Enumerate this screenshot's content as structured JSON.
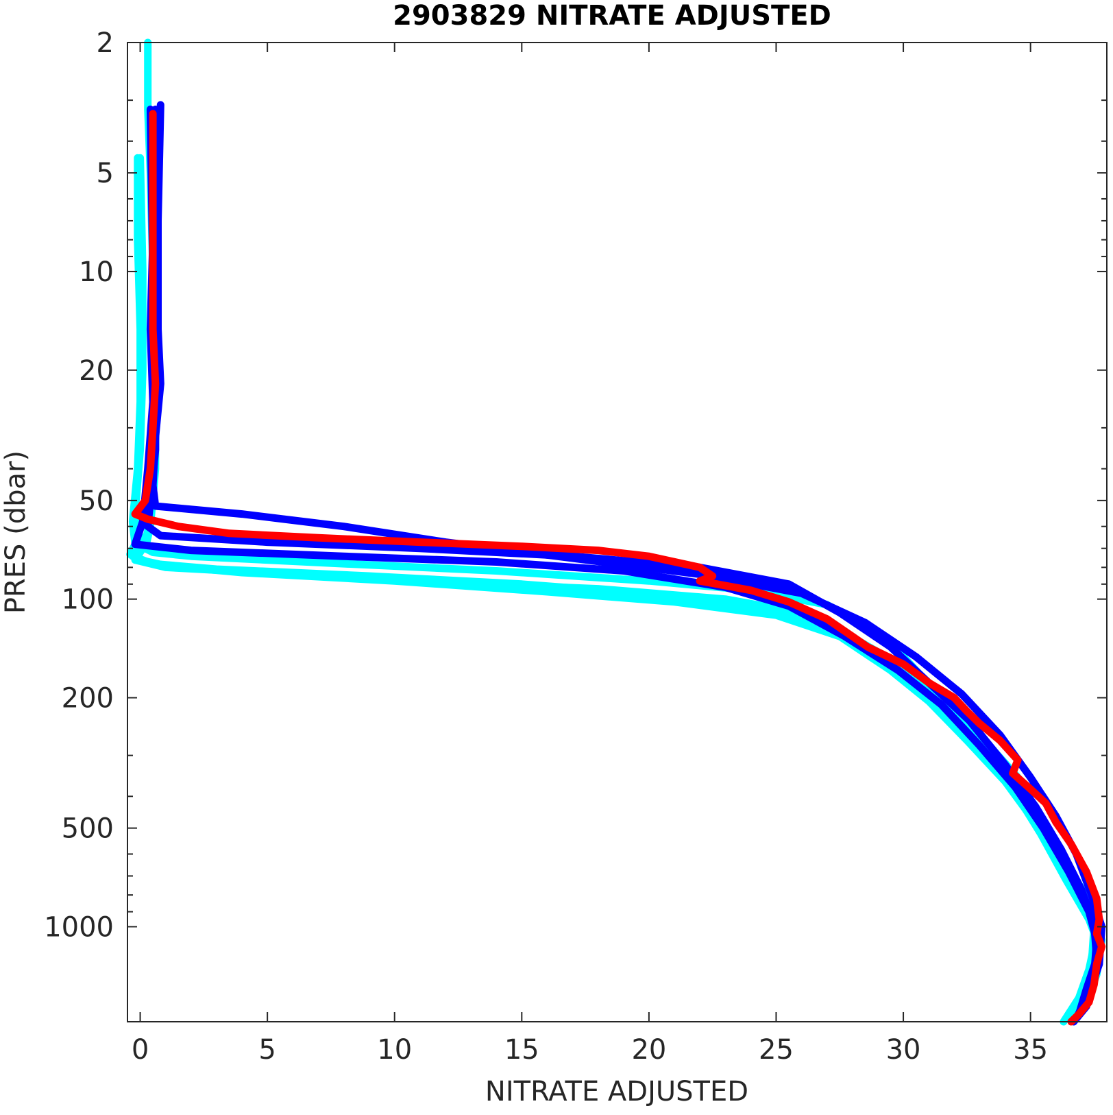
{
  "chart_data": {
    "type": "line",
    "title": "2903829  NITRATE ADJUSTED",
    "xlabel": "NITRATE ADJUSTED",
    "ylabel": "PRES (dbar)",
    "xlim": [
      -0.5,
      38
    ],
    "ylim": [
      2,
      1950
    ],
    "y_scale": "log",
    "y_reversed": true,
    "grid": false,
    "x_ticks": [
      0,
      5,
      10,
      15,
      20,
      25,
      30,
      35
    ],
    "y_ticks": [
      2,
      5,
      10,
      20,
      50,
      100,
      200,
      500,
      1000
    ],
    "colors": {
      "older": "#00ffff",
      "recent": "#0000ff",
      "latest": "#ff0000"
    },
    "series": [
      {
        "color": "#00ffff",
        "points": [
          [
            0.3,
            2
          ],
          [
            0.3,
            2.5
          ],
          [
            0.3,
            3.2
          ],
          [
            0.4,
            5
          ],
          [
            0.5,
            10
          ],
          [
            0.6,
            20
          ],
          [
            0.6,
            40
          ],
          [
            0.4,
            60
          ],
          [
            0.2,
            70
          ],
          [
            0.5,
            72
          ],
          [
            2,
            74
          ],
          [
            8,
            78
          ],
          [
            14,
            82
          ],
          [
            20,
            88
          ],
          [
            24,
            94
          ],
          [
            27,
            104
          ],
          [
            28.5,
            120
          ],
          [
            30,
            150
          ],
          [
            31.5,
            200
          ],
          [
            33,
            260
          ],
          [
            34.5,
            350
          ],
          [
            35.5,
            480
          ],
          [
            36.5,
            650
          ],
          [
            37.5,
            900
          ],
          [
            37.8,
            1100
          ],
          [
            37.6,
            1400
          ],
          [
            37.2,
            1700
          ],
          [
            36.8,
            1900
          ]
        ]
      },
      {
        "color": "#00ffff",
        "points": [
          [
            -0.1,
            4.5
          ],
          [
            -0.1,
            8
          ],
          [
            0,
            15
          ],
          [
            0,
            25
          ],
          [
            -0.1,
            40
          ],
          [
            -0.3,
            58
          ],
          [
            -0.2,
            68
          ],
          [
            -0.4,
            73
          ],
          [
            0,
            76
          ],
          [
            1,
            79
          ],
          [
            4,
            83
          ],
          [
            10,
            88
          ],
          [
            16,
            95
          ],
          [
            21,
            102
          ],
          [
            25,
            112
          ],
          [
            27.5,
            130
          ],
          [
            29.5,
            165
          ],
          [
            31,
            205
          ],
          [
            32.5,
            270
          ],
          [
            34,
            360
          ],
          [
            35,
            460
          ],
          [
            36,
            620
          ],
          [
            37,
            850
          ],
          [
            37.6,
            1050
          ],
          [
            37.3,
            1350
          ],
          [
            36.9,
            1650
          ],
          [
            36.3,
            1950
          ]
        ]
      },
      {
        "color": "#00ffff",
        "points": [
          [
            0,
            4.5
          ],
          [
            0.1,
            10
          ],
          [
            0.1,
            20
          ],
          [
            0,
            35
          ],
          [
            -0.2,
            55
          ],
          [
            0,
            66
          ],
          [
            -0.3,
            74
          ],
          [
            0.5,
            78
          ],
          [
            3,
            81
          ],
          [
            9,
            85
          ],
          [
            15,
            90
          ],
          [
            20.5,
            97
          ],
          [
            24.5,
            107
          ],
          [
            27,
            118
          ],
          [
            29,
            145
          ],
          [
            30.8,
            180
          ],
          [
            32.2,
            230
          ],
          [
            33.6,
            310
          ],
          [
            34.8,
            420
          ],
          [
            35.8,
            560
          ],
          [
            36.8,
            780
          ],
          [
            37.5,
            1000
          ],
          [
            37.4,
            1300
          ],
          [
            37,
            1600
          ],
          [
            36.5,
            1900
          ]
        ]
      },
      {
        "color": "#00ffff",
        "points": [
          [
            0.5,
            4.5
          ],
          [
            0.6,
            8
          ],
          [
            0.7,
            15
          ],
          [
            0.6,
            25
          ],
          [
            0.5,
            40
          ],
          [
            0.3,
            62
          ],
          [
            0.1,
            70
          ],
          [
            -0.2,
            76
          ],
          [
            1,
            80
          ],
          [
            6,
            84
          ],
          [
            12,
            89
          ],
          [
            18,
            93
          ],
          [
            23,
            100
          ],
          [
            26,
            110
          ],
          [
            28.5,
            138
          ],
          [
            30.3,
            172
          ],
          [
            31.8,
            215
          ],
          [
            33.2,
            290
          ],
          [
            34.4,
            390
          ],
          [
            35.4,
            520
          ],
          [
            36.4,
            720
          ],
          [
            37.3,
            950
          ],
          [
            37.7,
            1150
          ],
          [
            37.5,
            1450
          ],
          [
            37.1,
            1750
          ],
          [
            36.6,
            1920
          ]
        ]
      },
      {
        "color": "#0000ff",
        "points": [
          [
            0.8,
            3.1
          ],
          [
            0.7,
            7
          ],
          [
            0.7,
            15
          ],
          [
            0.8,
            22
          ],
          [
            0.6,
            32
          ],
          [
            0.5,
            45
          ],
          [
            0.6,
            52
          ],
          [
            4,
            55
          ],
          [
            8,
            60
          ],
          [
            12,
            67
          ],
          [
            17,
            75
          ],
          [
            22,
            84
          ],
          [
            26,
            96
          ],
          [
            28.5,
            118
          ],
          [
            30.5,
            150
          ],
          [
            32.3,
            195
          ],
          [
            33.8,
            260
          ],
          [
            35,
            350
          ],
          [
            36,
            460
          ],
          [
            36.8,
            600
          ],
          [
            37.4,
            800
          ],
          [
            37.8,
            1000
          ],
          [
            37.7,
            1300
          ],
          [
            37.3,
            1600
          ],
          [
            36.8,
            1900
          ]
        ]
      },
      {
        "color": "#0000ff",
        "points": [
          [
            0.6,
            3.2
          ],
          [
            0.5,
            8
          ],
          [
            0.4,
            15
          ],
          [
            0.5,
            25
          ],
          [
            0.3,
            40
          ],
          [
            0.1,
            58
          ],
          [
            -0.2,
            68
          ],
          [
            2,
            71
          ],
          [
            8,
            74
          ],
          [
            14,
            77
          ],
          [
            19,
            82
          ],
          [
            23,
            92
          ],
          [
            25.5,
            105
          ],
          [
            27.7,
            130
          ],
          [
            29.8,
            165
          ],
          [
            31.5,
            210
          ],
          [
            33,
            280
          ],
          [
            34.4,
            375
          ],
          [
            35.5,
            500
          ],
          [
            36.5,
            680
          ],
          [
            37.3,
            900
          ],
          [
            37.6,
            1100
          ],
          [
            37.5,
            1400
          ],
          [
            37.2,
            1750
          ],
          [
            36.7,
            1950
          ]
        ]
      },
      {
        "color": "#0000ff",
        "points": [
          [
            0.4,
            3.2
          ],
          [
            0.5,
            10
          ],
          [
            0.6,
            20
          ],
          [
            0.6,
            35
          ],
          [
            0.4,
            50
          ],
          [
            0.3,
            60
          ],
          [
            0.8,
            64
          ],
          [
            5,
            67
          ],
          [
            11,
            70
          ],
          [
            17,
            74
          ],
          [
            22,
            80
          ],
          [
            25.5,
            90
          ],
          [
            27.5,
            110
          ],
          [
            29.5,
            140
          ],
          [
            31,
            180
          ],
          [
            32.6,
            235
          ],
          [
            34,
            320
          ],
          [
            35.2,
            430
          ],
          [
            36.2,
            580
          ],
          [
            37,
            770
          ],
          [
            37.5,
            980
          ],
          [
            37.6,
            1250
          ],
          [
            37.2,
            1550
          ],
          [
            36.9,
            1850
          ]
        ]
      },
      {
        "color": "#ff0000",
        "points": [
          [
            0.5,
            3.3
          ],
          [
            0.5,
            6
          ],
          [
            0.5,
            10
          ],
          [
            0.5,
            15
          ],
          [
            0.6,
            22
          ],
          [
            0.5,
            30
          ],
          [
            0.4,
            40
          ],
          [
            0.2,
            50
          ],
          [
            -0.2,
            55
          ],
          [
            0.3,
            57
          ],
          [
            1.5,
            60
          ],
          [
            3.5,
            63
          ],
          [
            7,
            65
          ],
          [
            11,
            67
          ],
          [
            15,
            69
          ],
          [
            18,
            71
          ],
          [
            20,
            74
          ],
          [
            22,
            80
          ],
          [
            22.5,
            85
          ],
          [
            22,
            88
          ],
          [
            24,
            94
          ],
          [
            25.5,
            102
          ],
          [
            27,
            115
          ],
          [
            28,
            130
          ],
          [
            28.6,
            140
          ],
          [
            30,
            158
          ],
          [
            31,
            180
          ],
          [
            32,
            200
          ],
          [
            32.5,
            220
          ],
          [
            33,
            240
          ],
          [
            33.8,
            270
          ],
          [
            34.5,
            310
          ],
          [
            34.3,
            340
          ],
          [
            35,
            380
          ],
          [
            35.6,
            420
          ],
          [
            36,
            480
          ],
          [
            36.6,
            560
          ],
          [
            37.2,
            680
          ],
          [
            37.6,
            820
          ],
          [
            37.7,
            950
          ],
          [
            37.6,
            1050
          ],
          [
            37.8,
            1150
          ],
          [
            37.6,
            1300
          ],
          [
            37.5,
            1500
          ],
          [
            37.3,
            1700
          ],
          [
            36.9,
            1850
          ],
          [
            36.6,
            1950
          ]
        ]
      }
    ]
  }
}
